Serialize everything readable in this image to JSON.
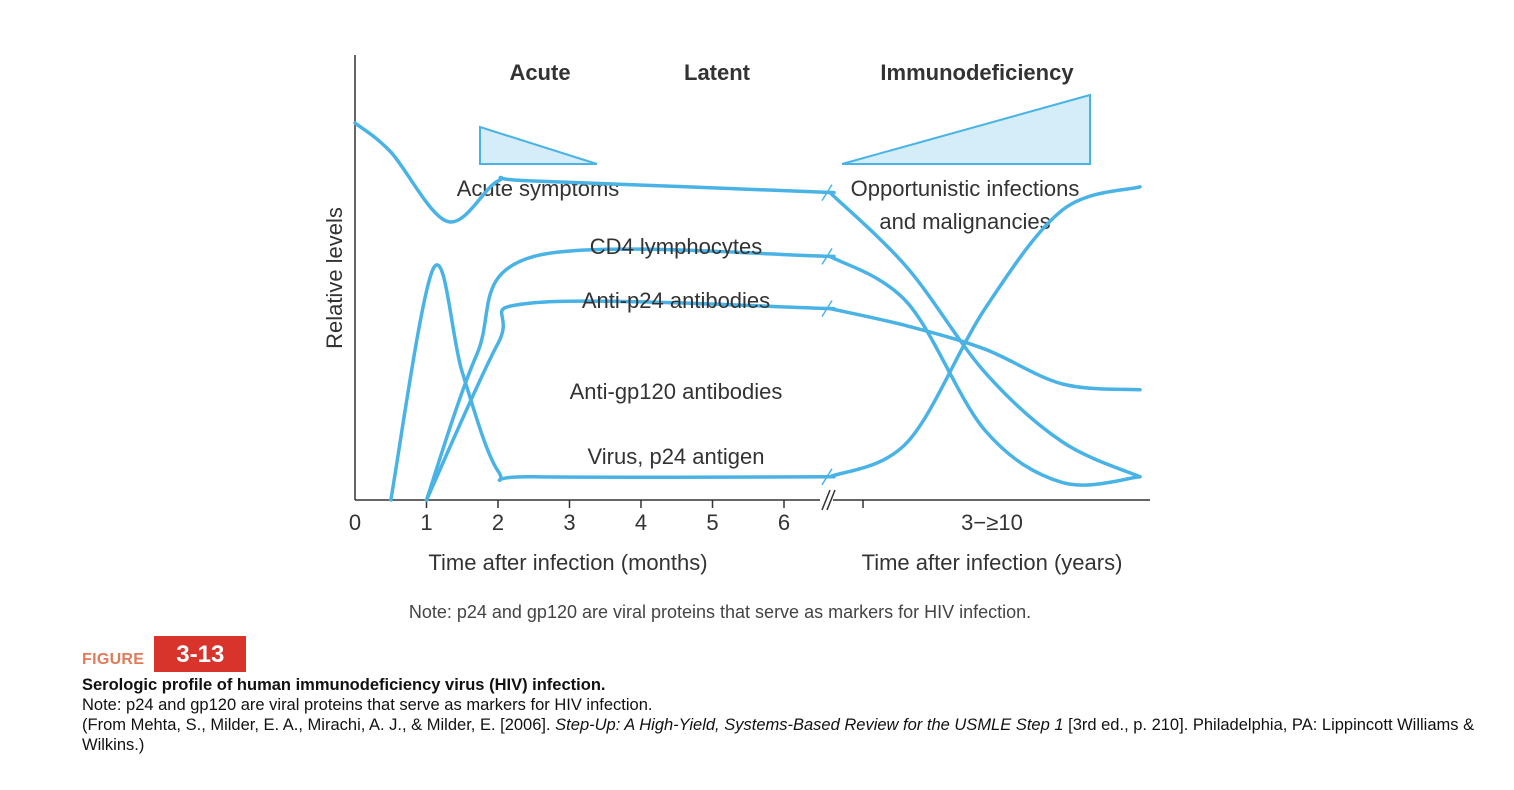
{
  "chart_data": {
    "type": "line",
    "phases": [
      "Acute",
      "Latent",
      "Immunodeficiency"
    ],
    "symptom_labels": {
      "acute": "Acute symptoms",
      "late_line1": "Opportunistic infections",
      "late_line2": "and malignancies"
    },
    "ylabel": "Relative levels",
    "x_months": {
      "ticks": [
        "0",
        "1",
        "2",
        "3",
        "4",
        "5",
        "6"
      ],
      "label": "Time after infection (months)"
    },
    "x_years": {
      "tick": "3−≥10",
      "label": "Time after infection (years)"
    },
    "series_labels": {
      "cd4": "CD4 lymphocytes",
      "p24": "Anti-p24 antibodies",
      "gp120": "Anti-gp120 antibodies",
      "virus": "Virus, p24 antigen"
    },
    "series": [
      {
        "name": "CD4 lymphocytes",
        "key": "cd4",
        "months": [
          [
            0,
            0.65
          ],
          [
            0.5,
            0.6
          ],
          [
            1.3,
            0.48
          ],
          [
            2,
            0.55
          ],
          [
            2.5,
            0.55
          ],
          [
            6.7,
            0.53
          ]
        ],
        "years": [
          [
            0,
            0.53
          ],
          [
            0.5,
            0.4
          ],
          [
            1,
            0.22
          ],
          [
            1.5,
            0.1
          ],
          [
            2,
            0.04
          ]
        ]
      },
      {
        "name": "Anti-p24 antibodies",
        "key": "p24",
        "months": [
          [
            1,
            0
          ],
          [
            1.7,
            0.25
          ],
          [
            2.5,
            0.42
          ],
          [
            6.7,
            0.42
          ]
        ],
        "years": [
          [
            0,
            0.42
          ],
          [
            0.5,
            0.34
          ],
          [
            1,
            0.12
          ],
          [
            1.5,
            0.03
          ],
          [
            2,
            0.04
          ]
        ]
      },
      {
        "name": "Anti-gp120 antibodies",
        "key": "gp120",
        "months": [
          [
            1,
            0
          ],
          [
            2,
            0.27
          ],
          [
            2.5,
            0.34
          ],
          [
            6.7,
            0.33
          ]
        ],
        "years": [
          [
            0,
            0.33
          ],
          [
            0.5,
            0.3
          ],
          [
            1,
            0.26
          ],
          [
            1.5,
            0.2
          ],
          [
            2,
            0.19
          ]
        ]
      },
      {
        "name": "Virus, p24 antigen",
        "key": "virus",
        "months": [
          [
            0.5,
            0
          ],
          [
            1.1,
            0.4
          ],
          [
            1.5,
            0.22
          ],
          [
            2,
            0.05
          ],
          [
            2.5,
            0.04
          ],
          [
            6.7,
            0.04
          ]
        ],
        "years": [
          [
            0,
            0.04
          ],
          [
            0.5,
            0.1
          ],
          [
            1,
            0.33
          ],
          [
            1.5,
            0.5
          ],
          [
            2,
            0.54
          ]
        ]
      }
    ],
    "note": "Note: p24 and gp120 are viral proteins that serve as markers for HIV infection."
  },
  "caption": {
    "figure_word": "FIGURE",
    "figure_number": "3-13",
    "title": "Serologic profile of human immunodeficiency virus (HIV) infection.",
    "note": "Note: p24 and gp120 are viral proteins that serve as markers for HIV infection.",
    "source_start": "(From Mehta, S., Milder, E. A., Mirachi, A. J., & Milder, E. [2006]. ",
    "source_italic": "Step-Up: A High-Yield, Systems-Based Review for the USMLE Step 1",
    "source_end": " [3rd ed., p. 210]. Philadelphia, PA: Lippincott Williams & Wilkins.)"
  },
  "colors": {
    "curve": "#4ab3e6",
    "fill": "#d4edf9",
    "axis": "#333333",
    "fig_badge": "#d9342b",
    "fig_word": "#e07b5a"
  }
}
